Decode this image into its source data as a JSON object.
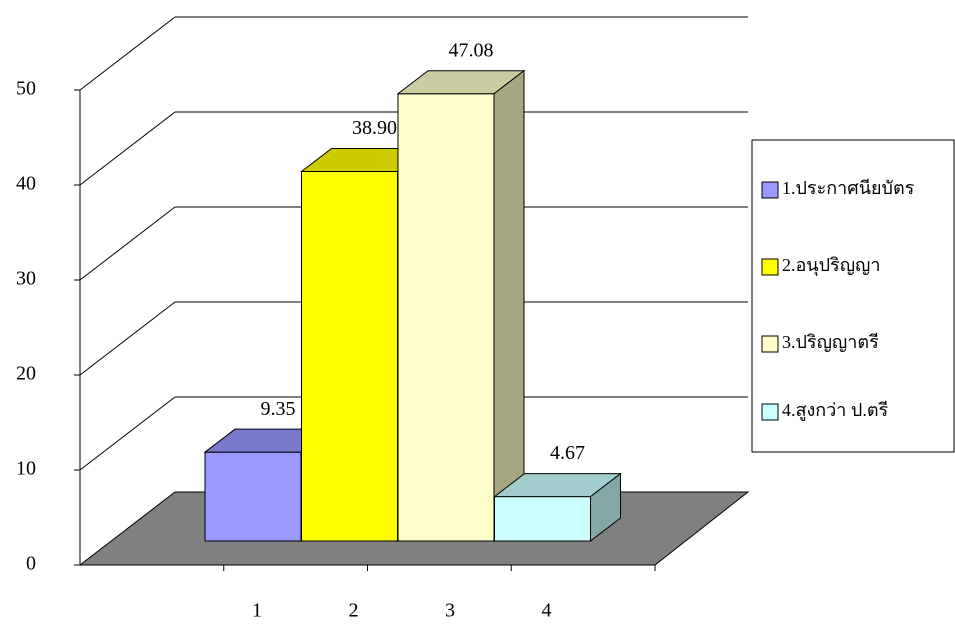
{
  "chart_data": {
    "type": "bar3d",
    "categories": [
      "1",
      "2",
      "3",
      "4"
    ],
    "values": [
      9.35,
      38.9,
      47.08,
      4.67
    ],
    "value_labels": [
      "9.35",
      "38.90",
      "47.08",
      "4.67"
    ],
    "colors": [
      "#9999ff",
      "#ffff00",
      "#ffffcc",
      "#ccffff"
    ],
    "legend": [
      "1.ประกาศนียบัตร",
      "2.อนุปริญญา",
      "3.ปริญญาตรี",
      "4.สูงกว่า ป.ตรี"
    ],
    "ylim": [
      0,
      50
    ],
    "yticks": [
      0,
      10,
      20,
      30,
      40,
      50
    ],
    "grid": true
  }
}
